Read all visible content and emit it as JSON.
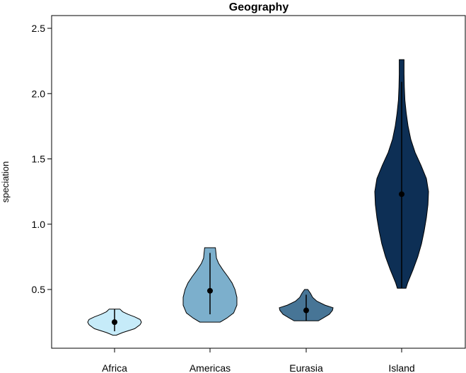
{
  "chart_data": {
    "type": "violin",
    "title": "Geography",
    "xlabel": "",
    "ylabel": "speciation",
    "ylim": [
      0.0,
      2.6
    ],
    "yticks": [
      0.5,
      1.0,
      1.5,
      2.0,
      2.5
    ],
    "ytick_labels": [
      "0.5",
      "1.0",
      "1.5",
      "2.0",
      "2.5"
    ],
    "grid": false,
    "categories": [
      "Africa",
      "Americas",
      "Eurasia",
      "Island"
    ],
    "groups": [
      {
        "category": "Africa",
        "color": "#c6ebf9",
        "median": 0.25,
        "whisker": [
          0.18,
          0.35
        ],
        "range": [
          0.15,
          0.35
        ],
        "profile": [
          [
            0.15,
            0.06
          ],
          [
            0.17,
            0.3
          ],
          [
            0.2,
            0.75
          ],
          [
            0.23,
            0.95
          ],
          [
            0.25,
            1.0
          ],
          [
            0.27,
            0.95
          ],
          [
            0.29,
            0.75
          ],
          [
            0.31,
            0.5
          ],
          [
            0.33,
            0.3
          ],
          [
            0.35,
            0.2
          ]
        ]
      },
      {
        "category": "Americas",
        "color": "#7cafcc",
        "median": 0.49,
        "whisker": [
          0.31,
          0.78
        ],
        "range": [
          0.25,
          0.82
        ],
        "profile": [
          [
            0.25,
            0.38
          ],
          [
            0.28,
            0.62
          ],
          [
            0.32,
            0.88
          ],
          [
            0.38,
            1.0
          ],
          [
            0.44,
            1.0
          ],
          [
            0.5,
            0.93
          ],
          [
            0.55,
            0.82
          ],
          [
            0.6,
            0.66
          ],
          [
            0.65,
            0.48
          ],
          [
            0.7,
            0.32
          ],
          [
            0.74,
            0.24
          ],
          [
            0.78,
            0.22
          ],
          [
            0.82,
            0.2
          ]
        ]
      },
      {
        "category": "Eurasia",
        "color": "#477596",
        "median": 0.34,
        "whisker": [
          0.26,
          0.46
        ],
        "range": [
          0.26,
          0.5
        ],
        "profile": [
          [
            0.26,
            0.45
          ],
          [
            0.28,
            0.62
          ],
          [
            0.31,
            0.86
          ],
          [
            0.34,
            0.98
          ],
          [
            0.36,
            1.0
          ],
          [
            0.38,
            0.7
          ],
          [
            0.41,
            0.4
          ],
          [
            0.44,
            0.24
          ],
          [
            0.47,
            0.16
          ],
          [
            0.5,
            0.06
          ]
        ]
      },
      {
        "category": "Island",
        "color": "#0d2f55",
        "median": 1.23,
        "whisker": [
          0.51,
          2.09
        ],
        "range": [
          0.51,
          2.26
        ],
        "profile": [
          [
            0.51,
            0.16
          ],
          [
            0.55,
            0.22
          ],
          [
            0.65,
            0.42
          ],
          [
            0.75,
            0.6
          ],
          [
            0.85,
            0.74
          ],
          [
            0.95,
            0.84
          ],
          [
            1.05,
            0.92
          ],
          [
            1.15,
            0.98
          ],
          [
            1.25,
            1.0
          ],
          [
            1.35,
            0.92
          ],
          [
            1.45,
            0.72
          ],
          [
            1.55,
            0.5
          ],
          [
            1.65,
            0.34
          ],
          [
            1.75,
            0.24
          ],
          [
            1.85,
            0.17
          ],
          [
            1.95,
            0.12
          ],
          [
            2.05,
            0.1
          ],
          [
            2.15,
            0.09
          ],
          [
            2.26,
            0.09
          ]
        ]
      }
    ]
  }
}
